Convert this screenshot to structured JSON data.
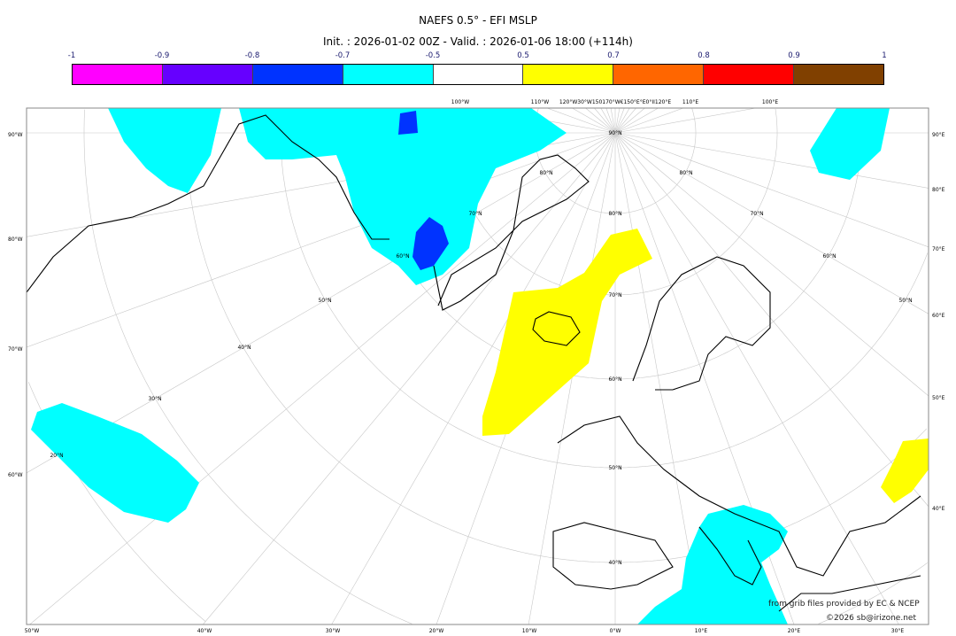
{
  "title": "NAEFS 0.5° - EFI MSLP",
  "subtitle": "Init. : 2026-01-02 00Z - Valid. : 2026-01-06 18:00 (+114h)",
  "colorbar": {
    "ticks": [
      "-1",
      "-0.9",
      "-0.8",
      "-0.7",
      "-0.5",
      "0.5",
      "0.7",
      "0.8",
      "0.9",
      "1"
    ],
    "colors": [
      "#ff00ff",
      "#6600ff",
      "#0033ff",
      "#00ffff",
      "#ffffff",
      "#ffff00",
      "#ff6600",
      "#ff0000",
      "#804000"
    ]
  },
  "map": {
    "left_labels": [
      "90°W",
      "80°W",
      "70°W",
      "60°W"
    ],
    "bottom_labels": [
      "50°W",
      "40°W",
      "30°W",
      "20°W",
      "10°W",
      "0°W",
      "10°E",
      "20°E",
      "30°E"
    ],
    "right_labels": [
      "90°E",
      "80°E",
      "70°E",
      "60°E",
      "50°E",
      "40°E"
    ],
    "top_labels": [
      "100°W",
      "110°W",
      "120°W30°W150170°W€150°E°E0°II120°E",
      "110°E",
      "100°E"
    ],
    "lat_labels": [
      "90°N",
      "80°N",
      "70°N",
      "60°N",
      "50°N",
      "40°N",
      "80°N",
      "70°N",
      "60°N",
      "50°N",
      "40°N",
      "30°N",
      "20°N",
      "80°N",
      "70°N",
      "60°N",
      "50°N"
    ]
  },
  "credits": {
    "source": "from grib files provided by EC & NCEP",
    "copyright": "©2026 sb@irizone.net"
  }
}
